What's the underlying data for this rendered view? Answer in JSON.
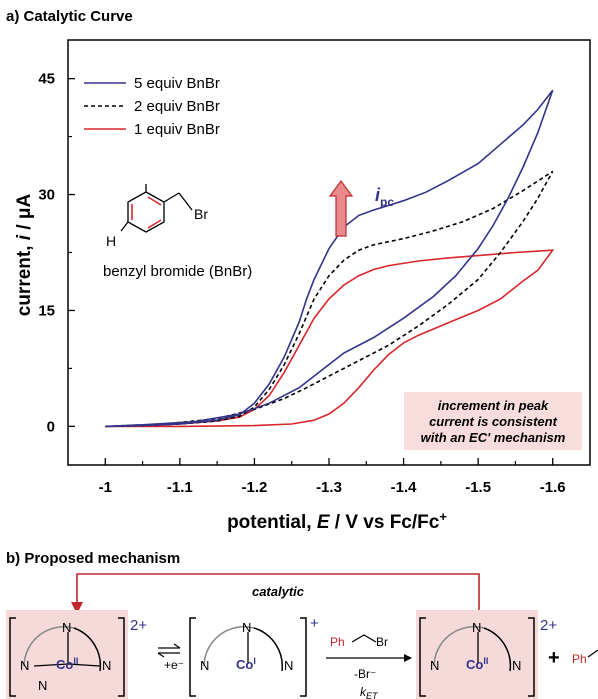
{
  "panel_a": {
    "title": "a) Catalytic Curve",
    "molecule_label": "benzyl bromide (BnBr)",
    "molecule_atoms": {
      "h": "H",
      "br": "Br"
    },
    "peak_label_main": "i",
    "peak_label_sub": "pc",
    "note_lines": [
      "increment in peak",
      "current is consistent",
      "with an EC' mechanism"
    ]
  },
  "panel_b": {
    "title": "b) Proposed mechanism",
    "catalytic_label": "catalytic",
    "charge_2plus": "2+",
    "charge_plus": "+",
    "co2_label": "Co",
    "co2_ox": "II",
    "co1_ox": "I",
    "n_label": "N",
    "electron_step": "+e⁻",
    "reagent_ph": "Ph",
    "reagent_br": "Br",
    "loss_label": "-Br⁻",
    "rate_label": "k",
    "rate_sub": "ET",
    "plus_sign": "+",
    "product_ph": "Ph"
  },
  "colors": {
    "series_5": "#33338a",
    "series_2": "#000000",
    "series_1": "#d8262c",
    "note_bg": "#f9dcdc",
    "arrow_fill": "#e88a8c",
    "mech_highlight": "#f6dada",
    "mech_arrow": "#c0282e"
  },
  "chart_data": {
    "type": "line",
    "title": "",
    "xlabel": "potential, E / V vs Fc/Fc⁺",
    "ylabel": "current, i / μA",
    "xlim": [
      -0.95,
      -1.65
    ],
    "ylim": [
      -5,
      50
    ],
    "x_reversed": true,
    "xticks": [
      -1,
      -1.1,
      -1.2,
      -1.3,
      -1.4,
      -1.5,
      -1.6
    ],
    "xtick_labels": [
      "-1",
      "-1.1",
      "-1.2",
      "-1.3",
      "-1.4",
      "-1.5",
      "-1.6"
    ],
    "yticks": [
      0,
      15,
      30,
      45
    ],
    "ytick_labels": [
      "0",
      "15",
      "30",
      "45"
    ],
    "legend_position": "top-left",
    "series": [
      {
        "name": "5 equiv BnBr",
        "dash": "solid",
        "color": "#33338a",
        "forward": [
          [
            -1.0,
            0.0
          ],
          [
            -1.05,
            0.1
          ],
          [
            -1.1,
            0.3
          ],
          [
            -1.15,
            0.8
          ],
          [
            -1.18,
            1.5
          ],
          [
            -1.2,
            3.0
          ],
          [
            -1.22,
            5.5
          ],
          [
            -1.24,
            9.0
          ],
          [
            -1.26,
            13.5
          ],
          [
            -1.27,
            16.5
          ],
          [
            -1.28,
            19.0
          ],
          [
            -1.3,
            23.0
          ],
          [
            -1.32,
            25.8
          ],
          [
            -1.34,
            27.3
          ],
          [
            -1.36,
            28.0
          ],
          [
            -1.38,
            28.6
          ],
          [
            -1.4,
            29.2
          ],
          [
            -1.43,
            30.3
          ],
          [
            -1.46,
            31.8
          ],
          [
            -1.5,
            34.0
          ],
          [
            -1.53,
            36.5
          ],
          [
            -1.56,
            39.0
          ],
          [
            -1.58,
            41.0
          ],
          [
            -1.6,
            43.5
          ]
        ],
        "reverse": [
          [
            -1.6,
            43.5
          ],
          [
            -1.58,
            38.0
          ],
          [
            -1.56,
            33.5
          ],
          [
            -1.54,
            29.5
          ],
          [
            -1.52,
            26.0
          ],
          [
            -1.5,
            23.0
          ],
          [
            -1.47,
            19.5
          ],
          [
            -1.44,
            16.8
          ],
          [
            -1.4,
            14.0
          ],
          [
            -1.36,
            11.5
          ],
          [
            -1.32,
            9.5
          ],
          [
            -1.3,
            8.0
          ],
          [
            -1.28,
            6.5
          ],
          [
            -1.26,
            5.0
          ],
          [
            -1.22,
            3.0
          ],
          [
            -1.18,
            1.6
          ],
          [
            -1.12,
            0.6
          ],
          [
            -1.05,
            0.2
          ],
          [
            -1.0,
            0.0
          ]
        ]
      },
      {
        "name": "2 equiv BnBr",
        "dash": "dashed",
        "color": "#000000",
        "forward": [
          [
            -1.0,
            0.0
          ],
          [
            -1.05,
            0.1
          ],
          [
            -1.1,
            0.3
          ],
          [
            -1.15,
            0.7
          ],
          [
            -1.18,
            1.3
          ],
          [
            -1.2,
            2.5
          ],
          [
            -1.22,
            4.8
          ],
          [
            -1.24,
            8.0
          ],
          [
            -1.26,
            12.0
          ],
          [
            -1.28,
            16.5
          ],
          [
            -1.3,
            19.5
          ],
          [
            -1.32,
            21.5
          ],
          [
            -1.34,
            22.8
          ],
          [
            -1.36,
            23.5
          ],
          [
            -1.4,
            24.3
          ],
          [
            -1.44,
            25.3
          ],
          [
            -1.48,
            26.5
          ],
          [
            -1.52,
            28.2
          ],
          [
            -1.56,
            30.5
          ],
          [
            -1.6,
            33.0
          ]
        ],
        "reverse": [
          [
            -1.6,
            33.0
          ],
          [
            -1.58,
            29.5
          ],
          [
            -1.56,
            26.5
          ],
          [
            -1.53,
            22.5
          ],
          [
            -1.5,
            19.0
          ],
          [
            -1.46,
            15.8
          ],
          [
            -1.42,
            13.0
          ],
          [
            -1.38,
            10.5
          ],
          [
            -1.34,
            8.5
          ],
          [
            -1.3,
            6.5
          ],
          [
            -1.27,
            5.0
          ],
          [
            -1.24,
            3.6
          ],
          [
            -1.2,
            2.2
          ],
          [
            -1.15,
            1.0
          ],
          [
            -1.08,
            0.3
          ],
          [
            -1.0,
            0.0
          ]
        ]
      },
      {
        "name": "1 equiv BnBr",
        "dash": "solid",
        "color": "#d8262c",
        "forward": [
          [
            -1.0,
            0.0
          ],
          [
            -1.05,
            0.1
          ],
          [
            -1.1,
            0.3
          ],
          [
            -1.15,
            0.7
          ],
          [
            -1.18,
            1.2
          ],
          [
            -1.2,
            2.2
          ],
          [
            -1.22,
            4.0
          ],
          [
            -1.24,
            7.0
          ],
          [
            -1.26,
            10.5
          ],
          [
            -1.28,
            14.0
          ],
          [
            -1.3,
            16.5
          ],
          [
            -1.32,
            18.3
          ],
          [
            -1.34,
            19.5
          ],
          [
            -1.36,
            20.3
          ],
          [
            -1.38,
            20.8
          ],
          [
            -1.42,
            21.4
          ],
          [
            -1.46,
            21.8
          ],
          [
            -1.5,
            22.1
          ],
          [
            -1.55,
            22.5
          ],
          [
            -1.6,
            22.8
          ]
        ],
        "reverse": [
          [
            -1.6,
            22.8
          ],
          [
            -1.58,
            20.2
          ],
          [
            -1.56,
            18.8
          ],
          [
            -1.53,
            16.5
          ],
          [
            -1.5,
            15.0
          ],
          [
            -1.46,
            13.4
          ],
          [
            -1.42,
            11.8
          ],
          [
            -1.4,
            10.8
          ],
          [
            -1.38,
            9.3
          ],
          [
            -1.36,
            7.3
          ],
          [
            -1.34,
            5.0
          ],
          [
            -1.32,
            3.0
          ],
          [
            -1.3,
            1.6
          ],
          [
            -1.28,
            0.8
          ],
          [
            -1.25,
            0.3
          ],
          [
            -1.2,
            0.1
          ],
          [
            -1.1,
            0.0
          ],
          [
            -1.0,
            0.0
          ]
        ]
      }
    ]
  }
}
